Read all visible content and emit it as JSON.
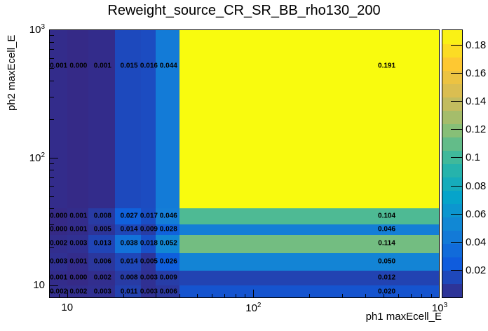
{
  "title": "Reweight_source_CR_SR_BB_rho130_200",
  "colors": {
    "background": "#ffffff",
    "frame": "#000000",
    "text": "#000000",
    "palette": [
      "#352a87",
      "#0f5cdd",
      "#1481d6",
      "#06a4ca",
      "#2eb7a4",
      "#87bf77",
      "#d1bb59",
      "#fec832",
      "#f9fb0e"
    ]
  },
  "chart_data": {
    "type": "heatmap",
    "title": "Reweight_source_CR_SR_BB_rho130_200",
    "xlabel": "ph1 maxEcell_E",
    "ylabel": "ph2 maxEcell_E",
    "xscale": "log",
    "yscale": "log",
    "grid": false,
    "legend_position": "right-colorbar",
    "xlim": [
      8,
      1000
    ],
    "ylim": [
      8,
      1000
    ],
    "x_bin_edges": [
      8,
      10,
      13,
      18,
      25,
      30,
      40,
      1000
    ],
    "y_bin_edges": [
      8,
      10,
      13,
      18,
      25,
      30,
      40,
      1000
    ],
    "rows_bottom_to_top": [
      [
        0.002,
        0.002,
        0.003,
        0.011,
        0.003,
        0.006,
        0.02
      ],
      [
        0.001,
        0.0,
        0.002,
        0.008,
        0.003,
        0.009,
        0.012
      ],
      [
        0.003,
        0.001,
        0.006,
        0.014,
        0.005,
        0.026,
        0.05
      ],
      [
        0.002,
        0.003,
        0.013,
        0.038,
        0.018,
        0.052,
        0.114
      ],
      [
        0.0,
        0.001,
        0.005,
        0.014,
        0.009,
        0.028,
        0.046
      ],
      [
        0.0,
        0.001,
        0.008,
        0.027,
        0.017,
        0.046,
        0.104
      ],
      [
        0.001,
        0.0,
        0.001,
        0.015,
        0.016,
        0.044,
        0.191
      ]
    ],
    "value_decimals": 3,
    "zmin": 0,
    "zmax": 0.191,
    "x_ticks": [
      {
        "value": 10,
        "base": "10",
        "exp": ""
      },
      {
        "value": 100,
        "base": "10",
        "exp": "2"
      },
      {
        "value": 1000,
        "base": "10",
        "exp": "3"
      }
    ],
    "y_ticks": [
      {
        "value": 10,
        "base": "10",
        "exp": ""
      },
      {
        "value": 100,
        "base": "10",
        "exp": "2"
      },
      {
        "value": 1000,
        "base": "10",
        "exp": "3"
      }
    ],
    "colorbar": {
      "steps": 20,
      "ticks": [
        {
          "value": 0.02,
          "label": "0.02"
        },
        {
          "value": 0.04,
          "label": "0.04"
        },
        {
          "value": 0.06,
          "label": "0.06"
        },
        {
          "value": 0.08,
          "label": "0.08"
        },
        {
          "value": 0.1,
          "label": "0.1"
        },
        {
          "value": 0.12,
          "label": "0.12"
        },
        {
          "value": 0.14,
          "label": "0.14"
        },
        {
          "value": 0.16,
          "label": "0.16"
        },
        {
          "value": 0.18,
          "label": "0.18"
        }
      ]
    }
  }
}
